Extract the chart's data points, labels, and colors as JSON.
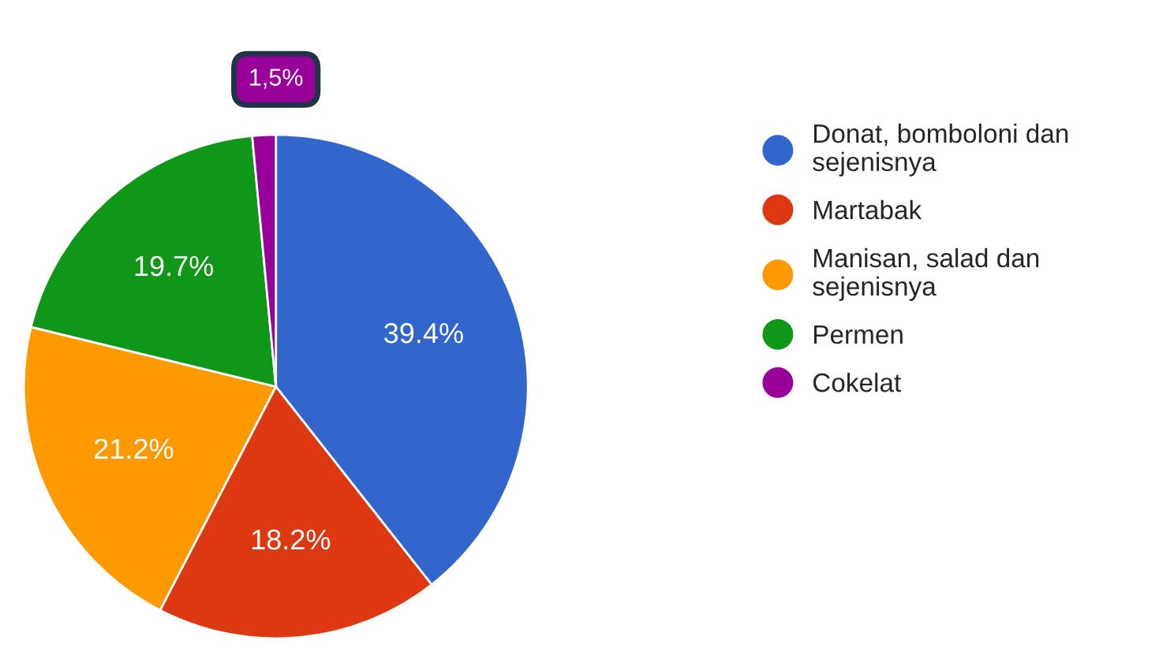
{
  "chart_data": {
    "type": "pie",
    "categories": [
      "Donat, bomboloni dan\nsejenisnya",
      "Martabak",
      "Manisan, salad dan\nsejenisnya",
      "Permen",
      "Cokelat"
    ],
    "values": [
      39.4,
      18.2,
      21.2,
      19.7,
      1.5
    ],
    "colors": [
      "#3366cc",
      "#dc3912",
      "#ff9900",
      "#109618",
      "#990099"
    ],
    "value_labels": [
      "39.4%",
      "18.2%",
      "21.2%",
      "19.7%",
      "1,5%"
    ],
    "legend": "right"
  }
}
